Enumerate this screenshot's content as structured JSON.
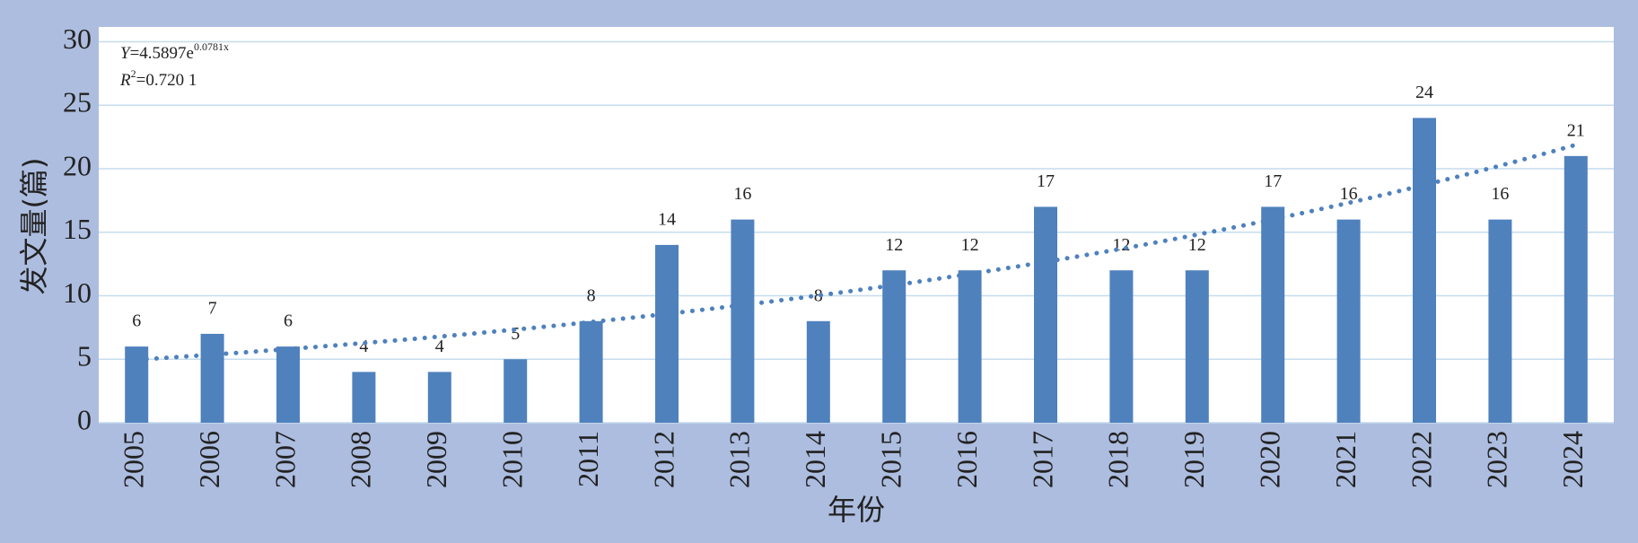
{
  "chart_data": {
    "type": "bar",
    "x_label": "年份",
    "y_label": "发文量(篇)",
    "categories": [
      "2005",
      "2006",
      "2007",
      "2008",
      "2009",
      "2010",
      "2011",
      "2012",
      "2013",
      "2014",
      "2015",
      "2016",
      "2017",
      "2018",
      "2019",
      "2020",
      "2021",
      "2022",
      "2023",
      "2024"
    ],
    "values": [
      6,
      7,
      6,
      4,
      4,
      5,
      8,
      14,
      16,
      8,
      12,
      12,
      17,
      12,
      12,
      17,
      16,
      24,
      16,
      21
    ],
    "color": "#4f81bd",
    "ylim": [
      0,
      30
    ],
    "yticks": [
      0,
      5,
      10,
      15,
      20,
      25,
      30
    ],
    "grid": true,
    "trendline": {
      "type": "exponential",
      "a": 4.5897,
      "b": 0.0781,
      "color": "#4f81bd",
      "style": "dotted"
    },
    "annotations": [
      {
        "parts": [
          "Y",
          "=4.5897e",
          "0.0781x"
        ]
      },
      {
        "parts": [
          "R",
          "2",
          "=0.720 1"
        ]
      }
    ]
  }
}
